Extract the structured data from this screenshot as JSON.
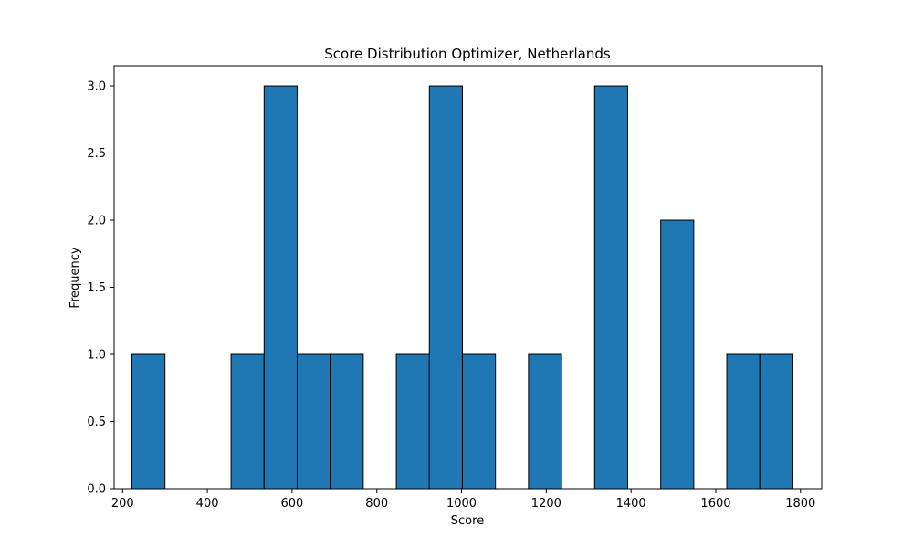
{
  "chart_data": {
    "type": "bar",
    "title": "Score Distribution Optimizer, Netherlands",
    "xlabel": "Score",
    "ylabel": "Frequency",
    "xlim": [
      180,
      1850
    ],
    "ylim": [
      0,
      3.15
    ],
    "grid": false,
    "x_ticks": [
      200,
      400,
      600,
      800,
      1000,
      1200,
      1400,
      1600,
      1800
    ],
    "x_tick_labels": [
      "200",
      "400",
      "600",
      "800",
      "1000",
      "1200",
      "1400",
      "1600",
      "1800"
    ],
    "y_ticks": [
      0,
      0.5,
      1.0,
      1.5,
      2.0,
      2.5,
      3.0
    ],
    "y_tick_labels": [
      "0.0",
      "0.5",
      "1.0",
      "1.5",
      "2.0",
      "2.5",
      "3.0"
    ],
    "bin_edges": [
      222,
      300,
      378,
      456,
      534,
      612,
      690,
      768,
      846,
      924,
      1002,
      1080,
      1158,
      1236,
      1314,
      1392,
      1470,
      1548,
      1626,
      1704,
      1782
    ],
    "values": [
      1,
      0,
      0,
      1,
      3,
      1,
      1,
      0,
      1,
      3,
      1,
      0,
      1,
      0,
      3,
      0,
      2,
      0,
      1,
      1
    ],
    "bar_color": "#1f77b4",
    "edge_color": "#000000"
  }
}
